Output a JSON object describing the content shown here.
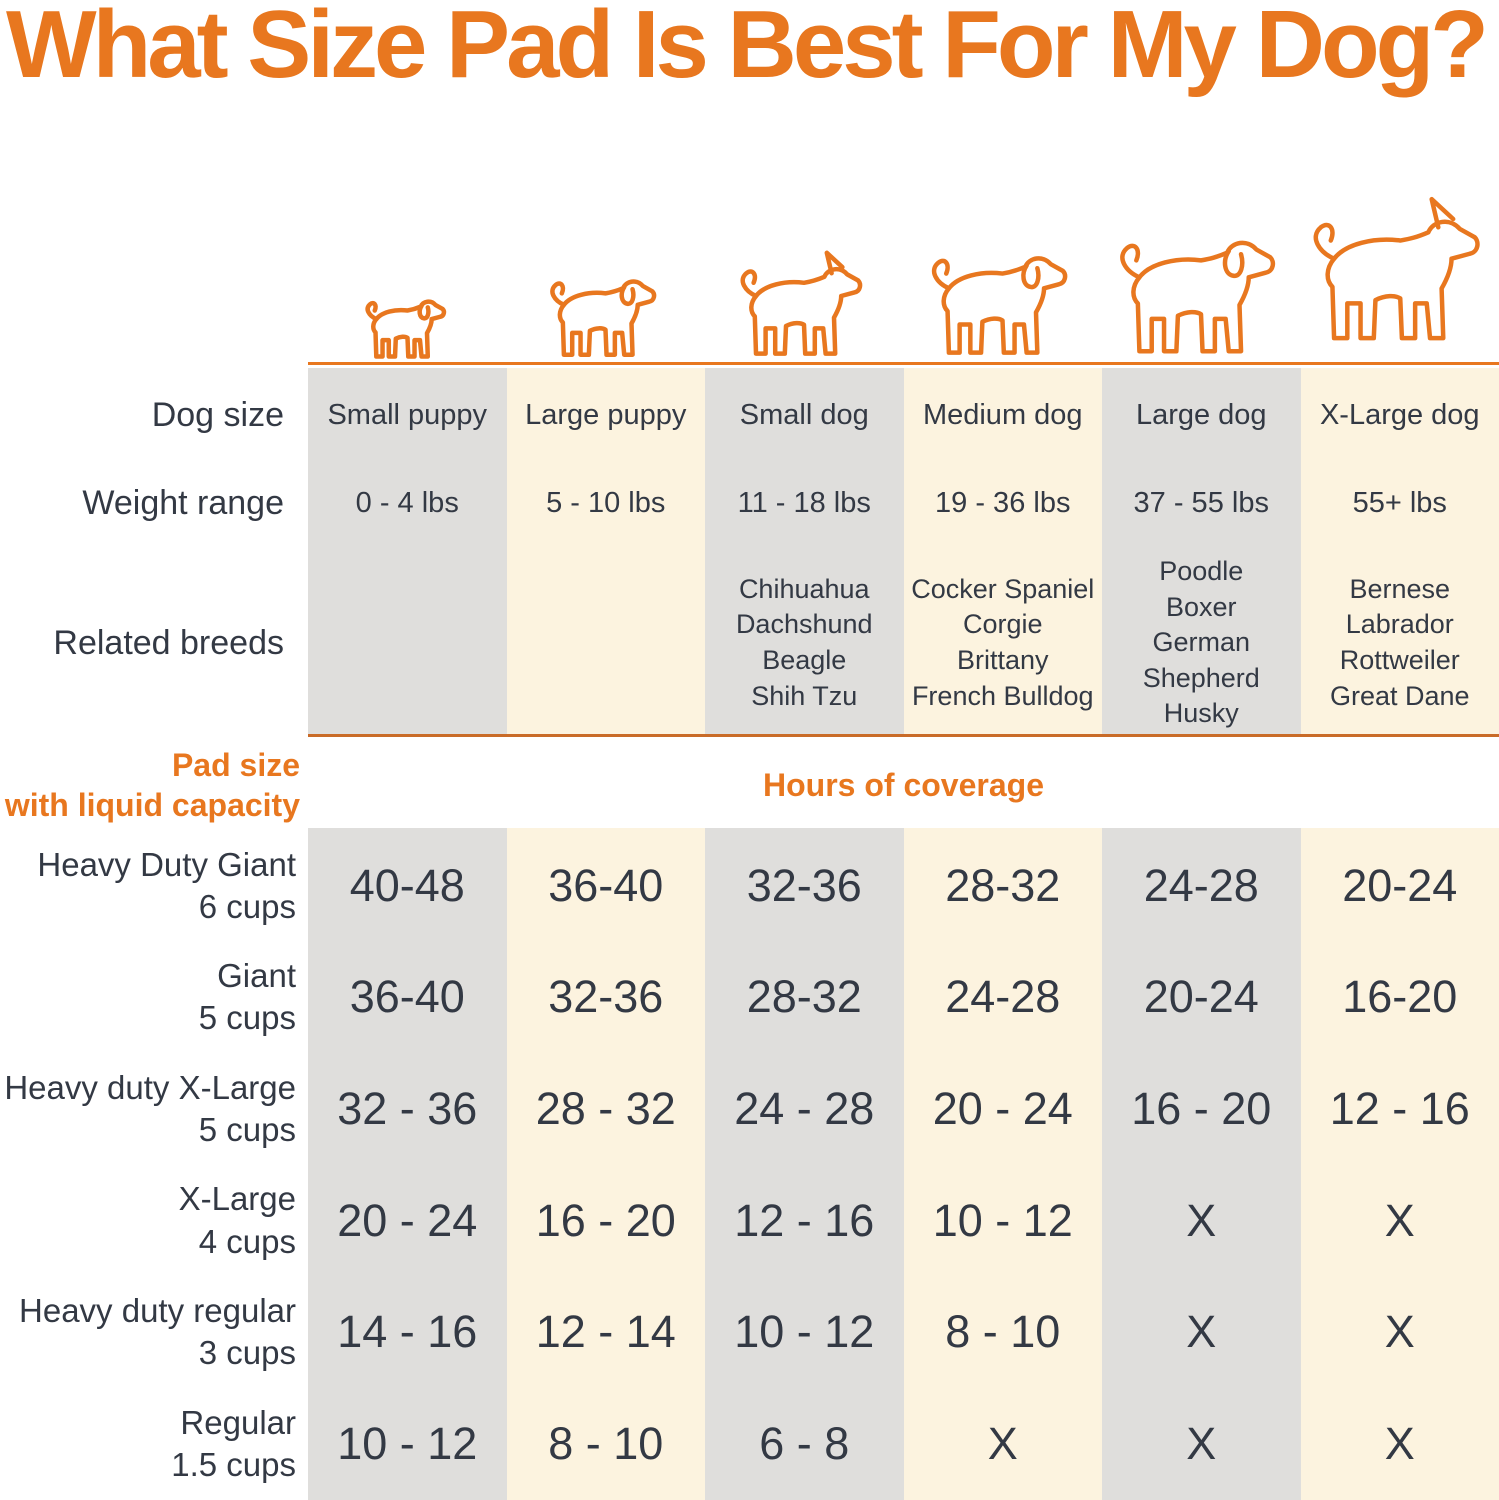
{
  "title": "What Size Pad Is Best For My Dog?",
  "colors": {
    "accent_orange": "#E8771F",
    "separator_orange": "#C96B28",
    "column_gray": "#DFDEDC",
    "column_cream": "#FCF3DF",
    "text_dark": "#333944"
  },
  "row_headers": {
    "dog_size": "Dog size",
    "weight_range": "Weight range",
    "related_breeds": "Related breeds"
  },
  "section_headers": {
    "pad_size_line1": "Pad size",
    "pad_size_line2": "with liquid capacity",
    "hours": "Hours of coverage"
  },
  "dog_icons": [
    "small-puppy-icon",
    "large-puppy-icon",
    "small-dog-icon",
    "medium-dog-icon",
    "large-dog-icon",
    "x-large-dog-icon"
  ],
  "chart_data": {
    "type": "table",
    "title": "What Size Pad Is Best For My Dog?",
    "columns": [
      {
        "dog_size": "Small puppy",
        "weight_range": "0 - 4 lbs",
        "related_breeds": [],
        "shade": "gray"
      },
      {
        "dog_size": "Large puppy",
        "weight_range": "5 - 10 lbs",
        "related_breeds": [],
        "shade": "cream"
      },
      {
        "dog_size": "Small dog",
        "weight_range": "11 - 18 lbs",
        "related_breeds": [
          "Chihuahua",
          "Dachshund",
          "Beagle",
          "Shih Tzu"
        ],
        "shade": "gray"
      },
      {
        "dog_size": "Medium dog",
        "weight_range": "19 - 36 lbs",
        "related_breeds": [
          "Cocker Spaniel",
          "Corgie",
          "Brittany",
          "French Bulldog"
        ],
        "shade": "cream"
      },
      {
        "dog_size": "Large dog",
        "weight_range": "37 - 55 lbs",
        "related_breeds": [
          "Poodle",
          "Boxer",
          "German Shepherd",
          "Husky"
        ],
        "shade": "gray"
      },
      {
        "dog_size": "X-Large dog",
        "weight_range": "55+ lbs",
        "related_breeds": [
          "Bernese",
          "Labrador",
          "Rottweiler",
          "Great Dane"
        ],
        "shade": "cream"
      }
    ],
    "rows": [
      {
        "pad": "Heavy Duty Giant",
        "capacity": "6 cups",
        "hours_of_coverage": [
          "40-48",
          "36-40",
          "32-36",
          "28-32",
          "24-28",
          "20-24"
        ]
      },
      {
        "pad": "Giant",
        "capacity": "5 cups",
        "hours_of_coverage": [
          "36-40",
          "32-36",
          "28-32",
          "24-28",
          "20-24",
          "16-20"
        ]
      },
      {
        "pad": "Heavy duty X-Large",
        "capacity": "5 cups",
        "hours_of_coverage": [
          "32 - 36",
          "28 - 32",
          "24 - 28",
          "20 - 24",
          "16 - 20",
          "12 - 16"
        ]
      },
      {
        "pad": "X-Large",
        "capacity": "4 cups",
        "hours_of_coverage": [
          "20 - 24",
          "16 - 20",
          "12 - 16",
          "10 - 12",
          "X",
          "X"
        ]
      },
      {
        "pad": "Heavy duty regular",
        "capacity": "3 cups",
        "hours_of_coverage": [
          "14 - 16",
          "12 - 14",
          "10 - 12",
          "8 - 10",
          "X",
          "X"
        ]
      },
      {
        "pad": "Regular",
        "capacity": "1.5 cups",
        "hours_of_coverage": [
          "10 - 12",
          "8 - 10",
          "6 - 8",
          "X",
          "X",
          "X"
        ]
      }
    ]
  }
}
